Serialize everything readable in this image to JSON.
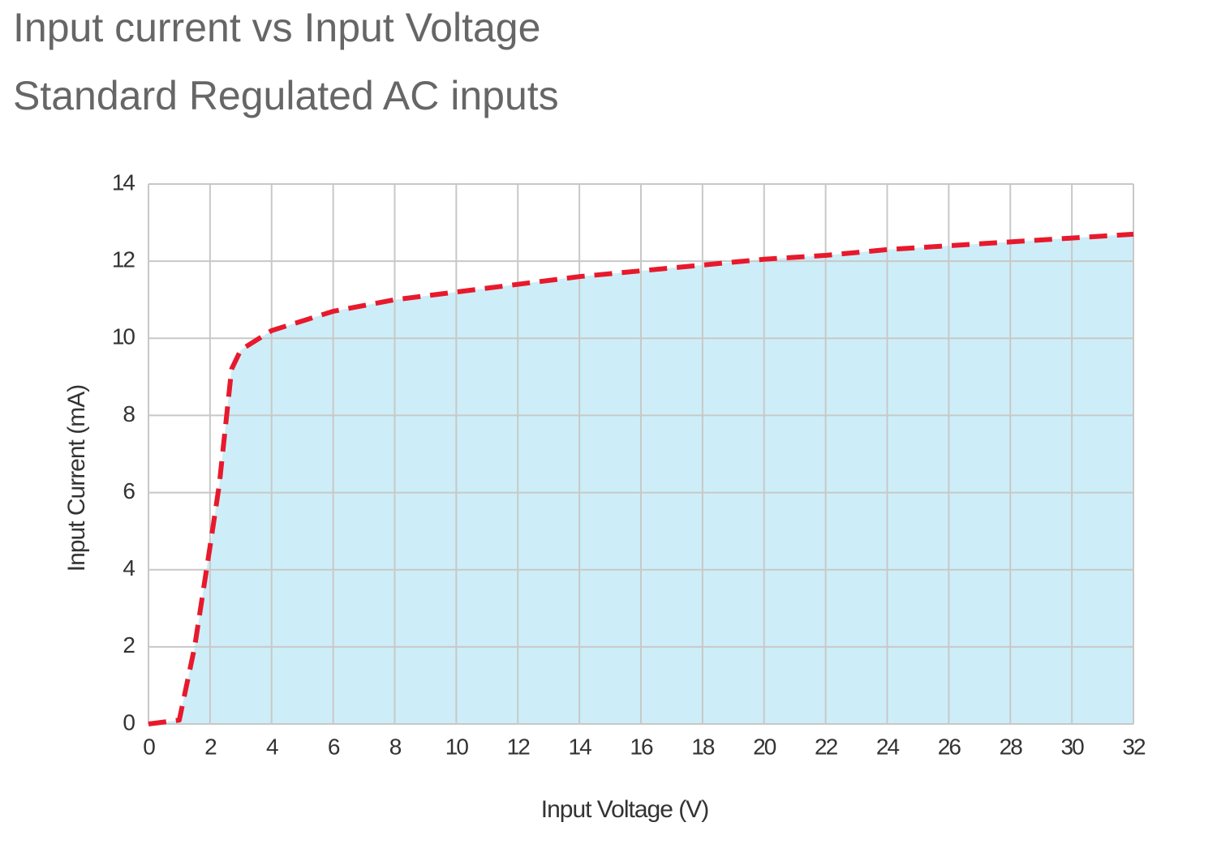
{
  "chart_data": {
    "type": "area",
    "title": "Input current vs Input Voltage",
    "subtitle": "Standard Regulated AC inputs",
    "x_label": "Input Voltage (V)",
    "y_label": "Input Current (mA)",
    "x": [
      0,
      1,
      1.5,
      2,
      2.3,
      2.7,
      3,
      4,
      6,
      8,
      10,
      12,
      14,
      16,
      18,
      20,
      22,
      24,
      26,
      28,
      30,
      32
    ],
    "series": [
      {
        "color": "#e8192c",
        "fill": "#cdeef8",
        "values": [
          0,
          0.1,
          2,
          4.6,
          6.2,
          9.2,
          9.7,
          10.2,
          10.7,
          11.0,
          11.2,
          11.4,
          11.6,
          11.75,
          11.9,
          12.05,
          12.15,
          12.3,
          12.4,
          12.5,
          12.6,
          12.7
        ]
      }
    ],
    "xlim": [
      0,
      32
    ],
    "xticks": [
      0,
      2,
      4,
      6,
      8,
      10,
      12,
      14,
      16,
      18,
      20,
      22,
      24,
      26,
      28,
      30,
      32
    ],
    "ylim": [
      0,
      14
    ],
    "yticks": [
      0,
      2,
      4,
      6,
      8,
      10,
      12,
      14
    ],
    "grid": true,
    "line_style": "dashed"
  }
}
